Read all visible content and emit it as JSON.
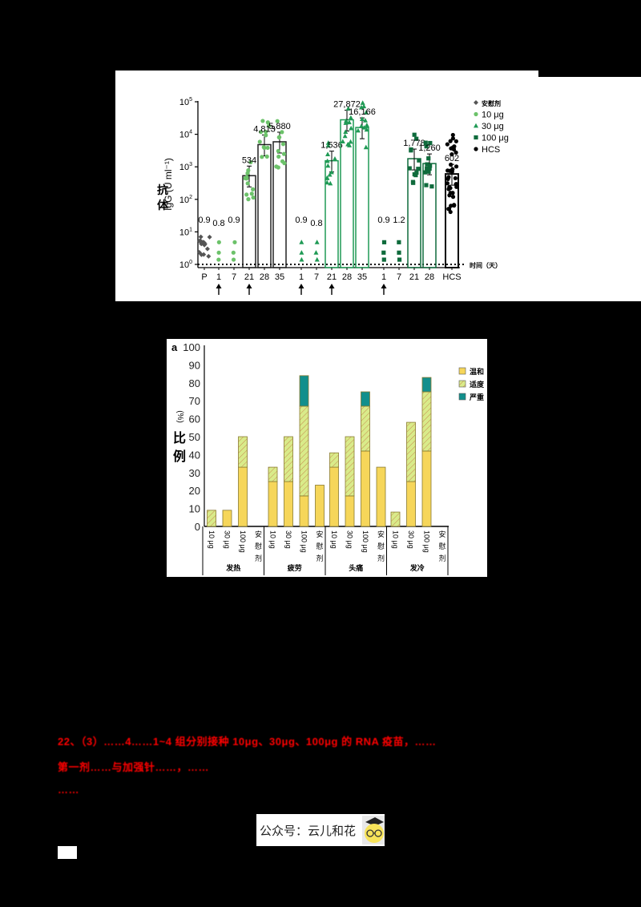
{
  "top_chart": {
    "ylabel": "IgG (U ml⁻¹)",
    "ylabel_cn": [
      "抗",
      "体"
    ],
    "xlabel": "时间（天）",
    "yticks": [
      "10⁰",
      "10¹",
      "10²",
      "10³",
      "10⁴",
      "10⁵"
    ],
    "legend": [
      {
        "label": "安慰剂",
        "marker": "diamond",
        "color": "#555555"
      },
      {
        "label": "10 μg",
        "marker": "circle",
        "color": "#6cc26a"
      },
      {
        "label": "30 μg",
        "marker": "triangle",
        "color": "#1f9a55"
      },
      {
        "label": "100 μg",
        "marker": "square",
        "color": "#0f6b3c"
      },
      {
        "label": "HCS",
        "marker": "circle",
        "color": "#000000"
      }
    ],
    "groups": [
      {
        "tick": "P",
        "gmt_label": "0.9",
        "gmt": 0.9,
        "series": "安慰剂",
        "arrow": false
      },
      {
        "tick": "1",
        "gmt_label": "0.8",
        "gmt": 0.8,
        "series": "10 μg",
        "arrow": true
      },
      {
        "tick": "7",
        "gmt_label": "0.9",
        "gmt": 0.9,
        "series": "10 μg",
        "arrow": false
      },
      {
        "tick": "21",
        "gmt_label": "534",
        "gmt": 534,
        "series": "10 μg",
        "arrow": true
      },
      {
        "tick": "28",
        "gmt_label": "4,813",
        "gmt": 4813,
        "series": "10 μg",
        "arrow": false
      },
      {
        "tick": "35",
        "gmt_label": "5,880",
        "gmt": 5880,
        "series": "10 μg",
        "arrow": false
      },
      {
        "tick": "1",
        "gmt_label": "0.9",
        "gmt": 0.9,
        "series": "30 μg",
        "arrow": true
      },
      {
        "tick": "7",
        "gmt_label": "0.8",
        "gmt": 0.8,
        "series": "30 μg",
        "arrow": false
      },
      {
        "tick": "21",
        "gmt_label": "1,536",
        "gmt": 1536,
        "series": "30 μg",
        "arrow": true
      },
      {
        "tick": "28",
        "gmt_label": "27,872",
        "gmt": 27872,
        "series": "30 μg",
        "arrow": false
      },
      {
        "tick": "35",
        "gmt_label": "16,166",
        "gmt": 16166,
        "series": "30 μg",
        "arrow": false
      },
      {
        "tick": "1",
        "gmt_label": "0.9",
        "gmt": 0.9,
        "series": "100 μg",
        "arrow": true
      },
      {
        "tick": "7",
        "gmt_label": "1.2",
        "gmt": 1.2,
        "series": "100 μg",
        "arrow": false
      },
      {
        "tick": "21",
        "gmt_label": "1,778",
        "gmt": 1778,
        "series": "100 μg",
        "arrow": false
      },
      {
        "tick": "28",
        "gmt_label": "1,260",
        "gmt": 1260,
        "series": "100 μg",
        "arrow": false
      },
      {
        "tick": "HCS",
        "gmt_label": "602",
        "gmt": 602,
        "series": "HCS",
        "arrow": false
      }
    ]
  },
  "bottom_chart": {
    "panel_label": "a",
    "ylabel": "(%)",
    "ylabel_cn": [
      "比",
      "例"
    ],
    "yticks": [
      "0",
      "10",
      "20",
      "30",
      "40",
      "50",
      "60",
      "70",
      "80",
      "90",
      "100"
    ],
    "legend": [
      {
        "label": "温和",
        "color": "#f6d65a",
        "pattern": "solid"
      },
      {
        "label": "适度",
        "color": "#d9eb8a",
        "pattern": "hatch"
      },
      {
        "label": "严重",
        "color": "#128f8c",
        "pattern": "solid"
      }
    ],
    "dose_labels": [
      "10 μg",
      "30 μg",
      "100 μg",
      "安慰剂"
    ],
    "groups": [
      "发热",
      "疲劳",
      "头痛",
      "发冷"
    ]
  },
  "chart_data": [
    {
      "type": "scatter",
      "title": "",
      "ylabel": "IgG (U ml⁻¹) 抗体",
      "xlabel": "时间（天）",
      "yscale": "log",
      "ylim": [
        1,
        100000
      ],
      "categories": [
        "P",
        "1",
        "7",
        "21",
        "28",
        "35",
        "1",
        "7",
        "21",
        "28",
        "35",
        "1",
        "7",
        "21",
        "28",
        "HCS"
      ],
      "series": [
        {
          "name": "安慰剂",
          "x": [
            "P"
          ],
          "values": [
            0.9
          ]
        },
        {
          "name": "10 μg",
          "x": [
            "1",
            "7",
            "21",
            "28",
            "35"
          ],
          "values": [
            0.8,
            0.9,
            534,
            4813,
            5880
          ]
        },
        {
          "name": "30 μg",
          "x": [
            "1",
            "7",
            "21",
            "28",
            "35"
          ],
          "values": [
            0.9,
            0.8,
            1536,
            27872,
            16166
          ]
        },
        {
          "name": "100 μg",
          "x": [
            "1",
            "7",
            "21",
            "28"
          ],
          "values": [
            0.9,
            1.2,
            1778,
            1260
          ]
        },
        {
          "name": "HCS",
          "x": [
            "HCS"
          ],
          "values": [
            602
          ]
        }
      ],
      "annotations": [
        "↑ vaccination arrows under day 1 and day 21 (10 μg, 30 μg), day 1 (100 μg)"
      ],
      "legend_position": "right"
    },
    {
      "type": "bar",
      "stacked": true,
      "title": "",
      "ylabel": "比例 (%)",
      "ylim": [
        0,
        100
      ],
      "categories": [
        "发热-10 μg",
        "发热-30 μg",
        "发热-100 μg",
        "发热-安慰剂",
        "疲劳-10 μg",
        "疲劳-30 μg",
        "疲劳-100 μg",
        "疲劳-安慰剂",
        "头痛-10 μg",
        "头痛-30 μg",
        "头痛-100 μg",
        "头痛-安慰剂",
        "发冷-10 μg",
        "发冷-30 μg",
        "发冷-100 μg",
        "发冷-安慰剂"
      ],
      "series": [
        {
          "name": "温和",
          "values": [
            0,
            9,
            33,
            0,
            25,
            25,
            17,
            23,
            33,
            17,
            42,
            33,
            0,
            25,
            42,
            0
          ]
        },
        {
          "name": "适度",
          "values": [
            9,
            0,
            17,
            0,
            8,
            25,
            50,
            0,
            8,
            33,
            25,
            0,
            8,
            33,
            33,
            0
          ]
        },
        {
          "name": "严重",
          "values": [
            0,
            0,
            0,
            0,
            0,
            0,
            17,
            0,
            0,
            0,
            8,
            0,
            0,
            0,
            8,
            0
          ]
        }
      ],
      "legend_position": "top-right"
    }
  ],
  "caption": {
    "line1": "22、（3）……4……1~4 组分别接种 10μg、30μg、100μg 的 RNA 疫苗，……",
    "line2": "第一剂……与加强针……，……",
    "line3": "……"
  },
  "footer": {
    "badge_text": "公众号：云儿和花"
  }
}
